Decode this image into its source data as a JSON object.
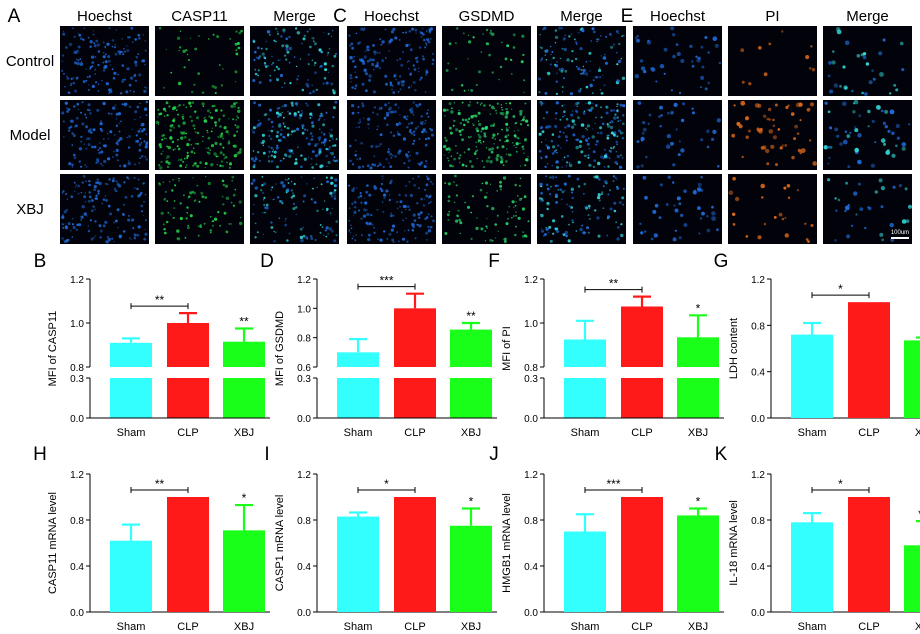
{
  "colors": {
    "sham": "#33ffff",
    "clp": "#ff1a1a",
    "xbj": "#1aff1a",
    "nucleus": "#1e6ad8",
    "casp11": "#22d14a",
    "gsdmd": "#2ad86a",
    "pi": "#e06a1a",
    "cyan_merge": "#32d8d8"
  },
  "micrographs": [
    {
      "letter": "A",
      "columns": [
        "Hoechst",
        "CASP11",
        "Merge"
      ],
      "column_stains": [
        "nucleus",
        "casp11",
        "merge"
      ]
    },
    {
      "letter": "C",
      "columns": [
        "Hoechst",
        "GSDMD",
        "Merge"
      ],
      "column_stains": [
        "nucleus",
        "gsdmd",
        "merge"
      ]
    },
    {
      "letter": "E",
      "columns": [
        "Hoechst",
        "PI",
        "Merge"
      ],
      "column_stains": [
        "nucleus",
        "pi",
        "merge"
      ]
    }
  ],
  "row_labels": [
    "Control",
    "Model",
    "XBJ"
  ],
  "scale_bar_label": "100um",
  "chart_data": [
    {
      "letter": "B",
      "type": "bar",
      "broken_axis": true,
      "categories": [
        "Sham",
        "CLP",
        "XBJ"
      ],
      "values": [
        0.91,
        1.0,
        0.915
      ],
      "errors": [
        0.02,
        0.045,
        0.06
      ],
      "ylabel": "MFI of CASP11",
      "upper_ticks": [
        "0.8",
        "1.0",
        "1.2"
      ],
      "lower_ticks": [
        "0.0",
        "0.3"
      ],
      "upper_range": [
        0.8,
        1.2
      ],
      "lower_range": [
        0,
        0.3
      ],
      "significance": [
        {
          "type": "bracket",
          "from": 0,
          "to": 1,
          "label": "**"
        },
        {
          "type": "above",
          "index": 2,
          "label": "**"
        }
      ]
    },
    {
      "letter": "D",
      "type": "bar",
      "broken_axis": true,
      "categories": [
        "Sham",
        "CLP",
        "XBJ"
      ],
      "values": [
        0.7,
        1.0,
        0.855
      ],
      "errors": [
        0.09,
        0.1,
        0.045
      ],
      "ylabel": "MFI of GSDMD",
      "upper_ticks": [
        "0.6",
        "0.8",
        "1.0",
        "1.2"
      ],
      "lower_ticks": [
        "0.0",
        "0.3"
      ],
      "upper_range": [
        0.6,
        1.2
      ],
      "lower_range": [
        0,
        0.3
      ],
      "significance": [
        {
          "type": "bracket",
          "from": 0,
          "to": 1,
          "label": "***"
        },
        {
          "type": "above",
          "index": 2,
          "label": "**"
        }
      ]
    },
    {
      "letter": "F",
      "type": "bar",
      "broken_axis": true,
      "categories": [
        "Sham",
        "CLP",
        "XBJ"
      ],
      "values": [
        0.925,
        1.075,
        0.935
      ],
      "errors": [
        0.085,
        0.045,
        0.1
      ],
      "ylabel": "MFI of PI",
      "upper_ticks": [
        "0.8",
        "1.0",
        "1.2"
      ],
      "lower_ticks": [
        "0.0",
        "0.3"
      ],
      "upper_range": [
        0.8,
        1.2
      ],
      "lower_range": [
        0,
        0.3
      ],
      "significance": [
        {
          "type": "bracket",
          "from": 0,
          "to": 1,
          "label": "**"
        },
        {
          "type": "above",
          "index": 2,
          "label": "*"
        }
      ]
    },
    {
      "letter": "G",
      "type": "bar",
      "broken_axis": false,
      "categories": [
        "Sham",
        "CLP",
        "XBJ"
      ],
      "values": [
        0.72,
        1.0,
        0.67
      ],
      "errors": [
        0.1,
        0.0,
        0.025
      ],
      "ylabel": "LDH content",
      "ticks": [
        "0.0",
        "0.4",
        "0.8",
        "1.2"
      ],
      "ylim": [
        0,
        1.2
      ],
      "significance": [
        {
          "type": "bracket",
          "from": 0,
          "to": 1,
          "label": "*"
        },
        {
          "type": "above",
          "index": 2,
          "label": "**"
        }
      ]
    },
    {
      "letter": "H",
      "type": "bar",
      "broken_axis": false,
      "categories": [
        "Sham",
        "CLP",
        "XBJ"
      ],
      "values": [
        0.62,
        1.0,
        0.71
      ],
      "errors": [
        0.14,
        0.0,
        0.22
      ],
      "ylabel": "CASP11 mRNA level",
      "ticks": [
        "0.0",
        "0.4",
        "0.8",
        "1.2"
      ],
      "ylim": [
        0,
        1.2
      ],
      "significance": [
        {
          "type": "bracket",
          "from": 0,
          "to": 1,
          "label": "**"
        },
        {
          "type": "above",
          "index": 2,
          "label": "*"
        }
      ]
    },
    {
      "letter": "I",
      "type": "bar",
      "broken_axis": false,
      "categories": [
        "Sham",
        "CLP",
        "XBJ"
      ],
      "values": [
        0.83,
        1.0,
        0.75
      ],
      "errors": [
        0.035,
        0.0,
        0.15
      ],
      "ylabel": "CASP1 mRNA level",
      "ticks": [
        "0.0",
        "0.4",
        "0.8",
        "1.2"
      ],
      "ylim": [
        0,
        1.2
      ],
      "significance": [
        {
          "type": "bracket",
          "from": 0,
          "to": 1,
          "label": "*"
        },
        {
          "type": "above",
          "index": 2,
          "label": "*"
        }
      ]
    },
    {
      "letter": "J",
      "type": "bar",
      "broken_axis": false,
      "categories": [
        "Sham",
        "CLP",
        "XBJ"
      ],
      "values": [
        0.7,
        1.0,
        0.84
      ],
      "errors": [
        0.15,
        0.0,
        0.06
      ],
      "ylabel": "HMGB1 mRNA level",
      "ticks": [
        "0.0",
        "0.4",
        "0.8",
        "1.2"
      ],
      "ylim": [
        0,
        1.2
      ],
      "significance": [
        {
          "type": "bracket",
          "from": 0,
          "to": 1,
          "label": "***"
        },
        {
          "type": "above",
          "index": 2,
          "label": "*"
        }
      ]
    },
    {
      "letter": "K",
      "type": "bar",
      "broken_axis": false,
      "categories": [
        "Sham",
        "CLP",
        "XBJ"
      ],
      "values": [
        0.78,
        1.0,
        0.58
      ],
      "errors": [
        0.08,
        0.0,
        0.21
      ],
      "ylabel": "IL-18 mRNA level",
      "ticks": [
        "0.0",
        "0.4",
        "0.8",
        "1.2"
      ],
      "ylim": [
        0,
        1.2
      ],
      "significance": [
        {
          "type": "bracket",
          "from": 0,
          "to": 1,
          "label": "*"
        },
        {
          "type": "above",
          "index": 2,
          "label": "***"
        }
      ]
    }
  ]
}
